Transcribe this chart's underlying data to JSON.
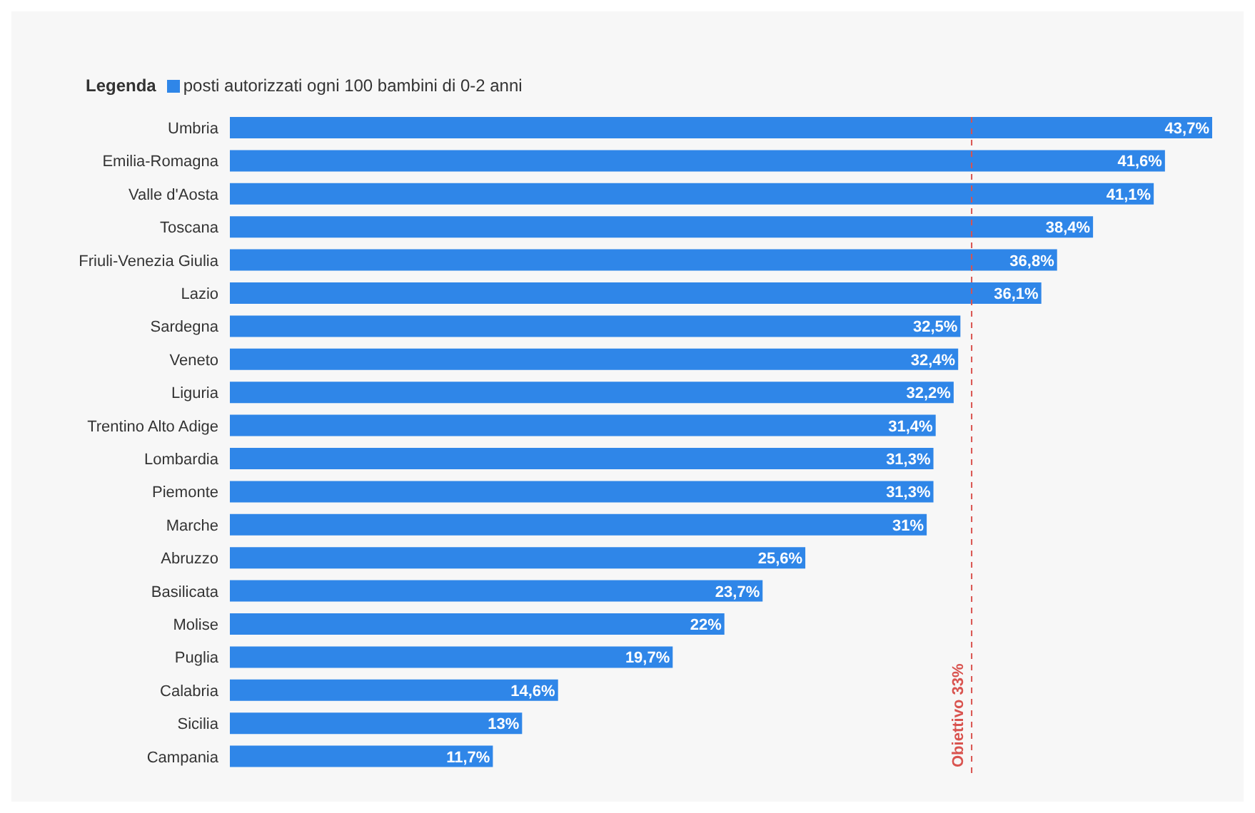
{
  "chart_data": {
    "type": "bar",
    "orientation": "horizontal",
    "legend_title": "Legenda",
    "legend": "top left",
    "tick_labels": "y",
    "grid": false,
    "categories": [
      "Umbria",
      "Emilia-Romagna",
      "Valle d'Aosta",
      "Toscana",
      "Friuli-Venezia Giulia",
      "Lazio",
      "Sardegna",
      "Veneto",
      "Liguria",
      "Trentino Alto Adige",
      "Lombardia",
      "Piemonte",
      "Marche",
      "Abruzzo",
      "Basilicata",
      "Molise",
      "Puglia",
      "Calabria",
      "Sicilia",
      "Campania"
    ],
    "series": [
      {
        "name": "posti autorizzati ogni 100 bambini di 0-2 anni",
        "color": "#2f86e8",
        "values": [
          43.7,
          41.6,
          41.1,
          38.4,
          36.8,
          36.1,
          32.5,
          32.4,
          32.2,
          31.4,
          31.3,
          31.3,
          31,
          25.6,
          23.7,
          22,
          19.7,
          14.6,
          13,
          11.7
        ],
        "value_labels": [
          "43,7%",
          "41,6%",
          "41,1%",
          "38,4%",
          "36,8%",
          "36,1%",
          "32,5%",
          "32,4%",
          "32,2%",
          "31,4%",
          "31,3%",
          "31,3%",
          "31%",
          "25,6%",
          "23,7%",
          "22%",
          "19,7%",
          "14,6%",
          "13%",
          "11,7%"
        ]
      }
    ],
    "ref_lines": [
      {
        "axis": "x",
        "value": 33,
        "label": "Obiettivo 33%",
        "color": "#d9534f",
        "line_style": "dashed"
      }
    ]
  }
}
